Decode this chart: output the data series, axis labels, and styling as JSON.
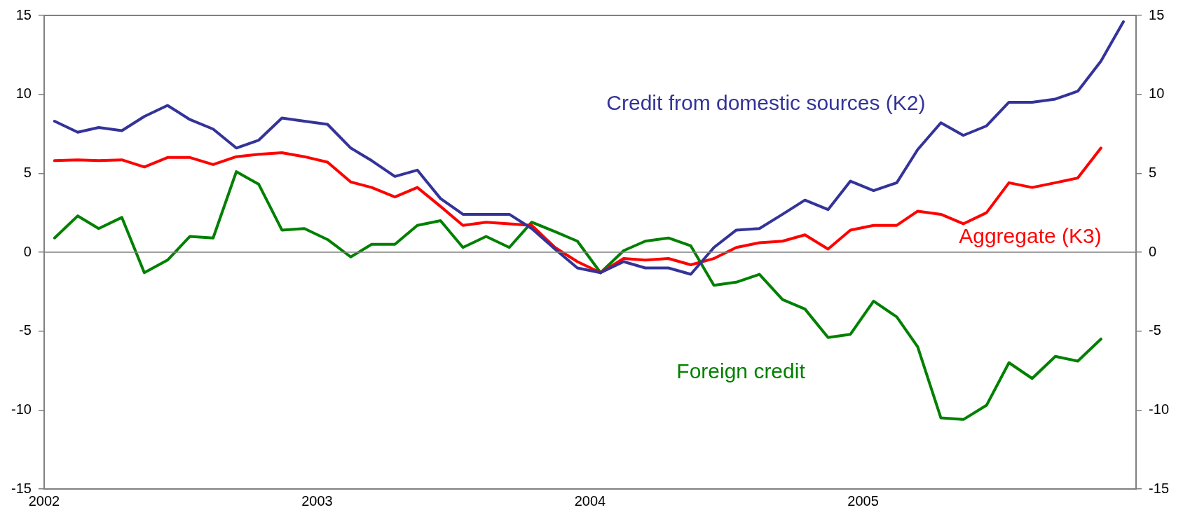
{
  "chart_data": {
    "type": "line",
    "x": [
      "2002-01-15",
      "2002-02-15",
      "2002-03-15",
      "2002-04-15",
      "2002-05-15",
      "2002-06-15",
      "2002-07-15",
      "2002-08-15",
      "2002-09-15",
      "2002-10-15",
      "2002-11-15",
      "2002-12-15",
      "2003-01-15",
      "2003-02-15",
      "2003-03-15",
      "2003-04-15",
      "2003-05-15",
      "2003-06-15",
      "2003-07-15",
      "2003-08-15",
      "2003-09-15",
      "2003-10-15",
      "2003-11-15",
      "2003-12-15",
      "2004-01-15",
      "2004-02-15",
      "2004-03-15",
      "2004-04-15",
      "2004-05-15",
      "2004-06-15",
      "2004-07-15",
      "2004-08-15",
      "2004-09-15",
      "2004-10-15",
      "2004-11-15",
      "2004-12-15",
      "2005-01-15",
      "2005-02-15",
      "2005-03-15",
      "2005-04-15",
      "2005-05-15",
      "2005-06-15",
      "2005-07-15",
      "2005-08-15",
      "2005-09-15",
      "2005-10-15",
      "2005-11-15",
      "2005-12-15"
    ],
    "series": [
      {
        "name": "Credit from domestic sources (K2)",
        "color": "#333399",
        "values": [
          8.3,
          7.6,
          7.9,
          7.7,
          8.6,
          9.3,
          8.4,
          7.8,
          6.6,
          7.1,
          8.5,
          8.3,
          8.1,
          6.6,
          5.8,
          4.8,
          5.2,
          3.4,
          2.4,
          2.4,
          2.4,
          1.5,
          0.2,
          -1.0,
          -1.3,
          -0.6,
          -1.0,
          -1.0,
          -1.4,
          0.3,
          1.4,
          1.5,
          2.4,
          3.3,
          2.7,
          4.5,
          3.9,
          4.4,
          6.5,
          8.2,
          7.4,
          8.0,
          9.5,
          9.5,
          9.7,
          10.2,
          12.1,
          14.6
        ]
      },
      {
        "name": "Aggregate (K3)",
        "color": "#ff0000",
        "values": [
          5.8,
          5.85,
          5.8,
          5.85,
          5.4,
          6.0,
          6.0,
          5.55,
          6.05,
          6.2,
          6.3,
          6.05,
          5.7,
          4.45,
          4.1,
          3.5,
          4.1,
          2.9,
          1.7,
          1.9,
          1.8,
          1.7,
          0.3,
          -0.6,
          -1.3,
          -0.4,
          -0.5,
          -0.4,
          -0.8,
          -0.4,
          0.3,
          0.6,
          0.7,
          1.1,
          0.2,
          1.4,
          1.7,
          1.7,
          2.6,
          2.4,
          1.8,
          2.5,
          4.4,
          4.1,
          4.4,
          4.7,
          6.6,
          null
        ]
      },
      {
        "name": "Foreign credit",
        "color": "#008000",
        "values": [
          0.9,
          2.3,
          1.5,
          2.2,
          -1.3,
          -0.5,
          1.0,
          0.9,
          5.1,
          4.3,
          1.4,
          1.5,
          0.8,
          -0.3,
          0.5,
          0.5,
          1.7,
          2.0,
          0.3,
          1.0,
          0.3,
          1.9,
          1.3,
          0.7,
          -1.3,
          0.1,
          0.7,
          0.9,
          0.4,
          -2.1,
          -1.9,
          -1.4,
          -3.0,
          -3.6,
          -5.4,
          -5.2,
          -3.1,
          -4.1,
          -6.0,
          -10.5,
          -10.6,
          -9.7,
          -7.0,
          -8.0,
          -6.6,
          -6.9,
          -5.5,
          null
        ]
      }
    ],
    "xlim": [
      "2002",
      "2006"
    ],
    "xticks": [
      "2002",
      "2003",
      "2004",
      "2005",
      {
        "value": "2006",
        "label": null
      }
    ],
    "ylim": [
      -15,
      15
    ],
    "yticks": [
      -15,
      -10,
      -5,
      0,
      5,
      10,
      15
    ],
    "y2lim": [
      -15,
      15
    ],
    "y2ticks": [
      -15,
      -10,
      -5,
      0,
      5,
      10,
      15
    ],
    "ref_lines": [
      {
        "axis": "y",
        "value": 0,
        "color": "#808080"
      }
    ],
    "grid": false,
    "legend": false,
    "marker": "none",
    "line_style": "solid"
  }
}
